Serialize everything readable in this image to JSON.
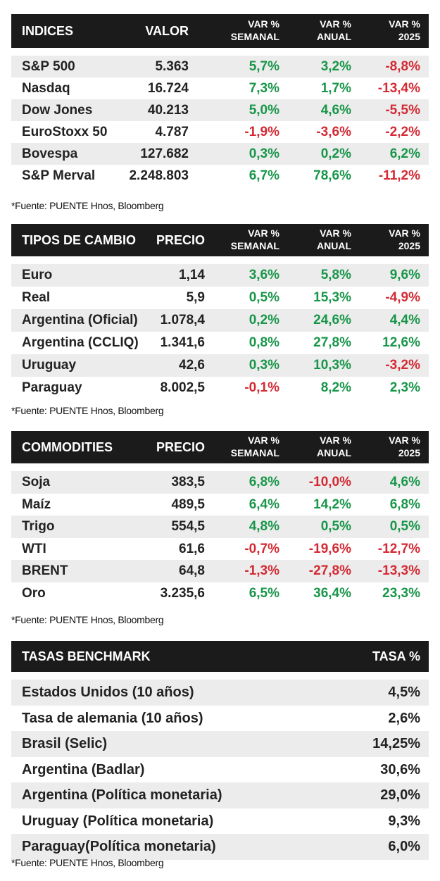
{
  "indices": {
    "headers": {
      "name": "INDICES",
      "value": "VALOR",
      "weekly": [
        "VAR %",
        "SEMANAL"
      ],
      "annual": [
        "VAR %",
        "ANUAL"
      ],
      "ytd": [
        "VAR %",
        "2025"
      ]
    },
    "rows": [
      {
        "name": "S&P 500",
        "value": "5.363",
        "weekly": "5,7%",
        "annual": "3,2%",
        "ytd": "-8,8%"
      },
      {
        "name": "Nasdaq",
        "value": "16.724",
        "weekly": "7,3%",
        "annual": "1,7%",
        "ytd": "-13,4%"
      },
      {
        "name": "Dow Jones",
        "value": "40.213",
        "weekly": "5,0%",
        "annual": "4,6%",
        "ytd": "-5,5%"
      },
      {
        "name": "EuroStoxx 50",
        "value": "4.787",
        "weekly": "-1,9%",
        "annual": "-3,6%",
        "ytd": "-2,2%"
      },
      {
        "name": "Bovespa",
        "value": "127.682",
        "weekly": "0,3%",
        "annual": "0,2%",
        "ytd": "6,2%"
      },
      {
        "name": "S&P Merval",
        "value": "2.248.803",
        "weekly": "6,7%",
        "annual": "78,6%",
        "ytd": "-11,2%"
      }
    ],
    "source": "*Fuente: PUENTE Hnos, Bloomberg"
  },
  "exchange": {
    "headers": {
      "name": "TIPOS DE CAMBIO",
      "value": "PRECIO",
      "weekly": [
        "VAR %",
        "SEMANAL"
      ],
      "annual": [
        "VAR %",
        "ANUAL"
      ],
      "ytd": [
        "VAR %",
        "2025"
      ]
    },
    "rows": [
      {
        "name": "Euro",
        "value": "1,14",
        "weekly": "3,6%",
        "annual": "5,8%",
        "ytd": "9,6%"
      },
      {
        "name": "Real",
        "value": "5,9",
        "weekly": "0,5%",
        "annual": "15,3%",
        "ytd": "-4,9%"
      },
      {
        "name": "Argentina (Oficial)",
        "value": "1.078,4",
        "weekly": "0,2%",
        "annual": "24,6%",
        "ytd": "4,4%"
      },
      {
        "name": "Argentina (CCLIQ)",
        "value": "1.341,6",
        "weekly": "0,8%",
        "annual": "27,8%",
        "ytd": "12,6%"
      },
      {
        "name": "Uruguay",
        "value": "42,6",
        "weekly": "0,3%",
        "annual": "10,3%",
        "ytd": "-3,2%"
      },
      {
        "name": "Paraguay",
        "value": "8.002,5",
        "weekly": "-0,1%",
        "annual": "8,2%",
        "ytd": "2,3%"
      }
    ],
    "source": "*Fuente: PUENTE Hnos, Bloomberg"
  },
  "commodities": {
    "headers": {
      "name": "COMMODITIES",
      "value": "PRECIO",
      "weekly": [
        "VAR %",
        "SEMANAL"
      ],
      "annual": [
        "VAR %",
        "ANUAL"
      ],
      "ytd": [
        "VAR %",
        "2025"
      ]
    },
    "rows": [
      {
        "name": "Soja",
        "value": "383,5",
        "weekly": "6,8%",
        "annual": "-10,0%",
        "ytd": "4,6%"
      },
      {
        "name": "Maíz",
        "value": "489,5",
        "weekly": "6,4%",
        "annual": "14,2%",
        "ytd": "6,8%"
      },
      {
        "name": "Trigo",
        "value": "554,5",
        "weekly": "4,8%",
        "annual": "0,5%",
        "ytd": "0,5%"
      },
      {
        "name": "WTI",
        "value": "61,6",
        "weekly": "-0,7%",
        "annual": "-19,6%",
        "ytd": "-12,7%"
      },
      {
        "name": "BRENT",
        "value": "64,8",
        "weekly": "-1,3%",
        "annual": "-27,8%",
        "ytd": "-13,3%"
      },
      {
        "name": "Oro",
        "value": "3.235,6",
        "weekly": "6,5%",
        "annual": "36,4%",
        "ytd": "23,3%"
      }
    ],
    "source": "*Fuente: PUENTE Hnos, Bloomberg"
  },
  "rates": {
    "headers": {
      "name": "TASAS BENCHMARK",
      "value": "TASA %"
    },
    "rows": [
      {
        "name": "Estados Unidos (10 años)",
        "value": "4,5%"
      },
      {
        "name": "Tasa de alemania (10 años)",
        "value": "2,6%"
      },
      {
        "name": "Brasil (Selic)",
        "value": "14,25%"
      },
      {
        "name": "Argentina (Badlar)",
        "value": "30,6%"
      },
      {
        "name": "Argentina (Política monetaria)",
        "value": "29,0%"
      },
      {
        "name": "Uruguay (Política monetaria)",
        "value": "9,3%"
      },
      {
        "name": "Paraguay(Política monetaria)",
        "value": "6,0%"
      }
    ],
    "source": "*Fuente: PUENTE Hnos, Bloomberg"
  },
  "colors": {
    "positive": "#19964a",
    "negative": "#d42a34",
    "header_bg": "#1b1b1b",
    "row_alt": "#ececec"
  }
}
